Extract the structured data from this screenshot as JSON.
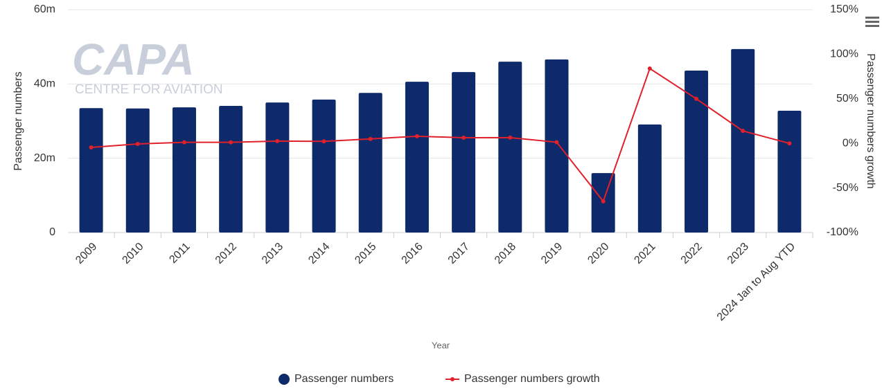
{
  "chart_data": {
    "type": "bar",
    "watermark": [
      "CAPA",
      "CENTRE FOR AVIATION"
    ],
    "x_label": "Year",
    "y_label": "Passenger numbers",
    "y2_label": "Passenger numbers growth",
    "categories": [
      "2009",
      "2010",
      "2011",
      "2012",
      "2013",
      "2014",
      "2015",
      "2016",
      "2017",
      "2018",
      "2019",
      "2020",
      "2021",
      "2022",
      "2023",
      "2024 Jan to Aug YTD"
    ],
    "series": [
      {
        "name": "Passenger numbers",
        "type": "bar",
        "color": "#0e2a6b",
        "values": [
          33500000,
          33400000,
          33700000,
          34100000,
          35000000,
          35800000,
          37600000,
          40600000,
          43200000,
          46000000,
          46600000,
          16000000,
          29100000,
          43600000,
          49400000,
          32800000
        ]
      },
      {
        "name": "Passenger numbers growth",
        "type": "line",
        "axis": "y2",
        "color": "#e0202a",
        "values": [
          -4.5,
          -0.6,
          1.2,
          1.2,
          2.6,
          2.3,
          5.0,
          8.0,
          6.4,
          6.5,
          1.3,
          -65,
          84,
          50,
          14,
          0
        ]
      }
    ],
    "ylim": [
      0,
      60000000
    ],
    "yticks": [
      0,
      {
        "value": 20000000,
        "label": "20m"
      },
      {
        "value": 40000000,
        "label": "40m"
      },
      {
        "value": 60000000,
        "label": "60m"
      }
    ],
    "y2lim": [
      -100,
      150
    ],
    "y2ticks": [
      {
        "value": -100,
        "label": "-100%"
      },
      {
        "value": -50,
        "label": "-50%"
      },
      {
        "value": 0,
        "label": "0%"
      },
      {
        "value": 50,
        "label": "50%"
      },
      {
        "value": 100,
        "label": "100%"
      },
      {
        "value": 150,
        "label": "150%"
      }
    ],
    "grid": true,
    "legend": "bottom"
  }
}
